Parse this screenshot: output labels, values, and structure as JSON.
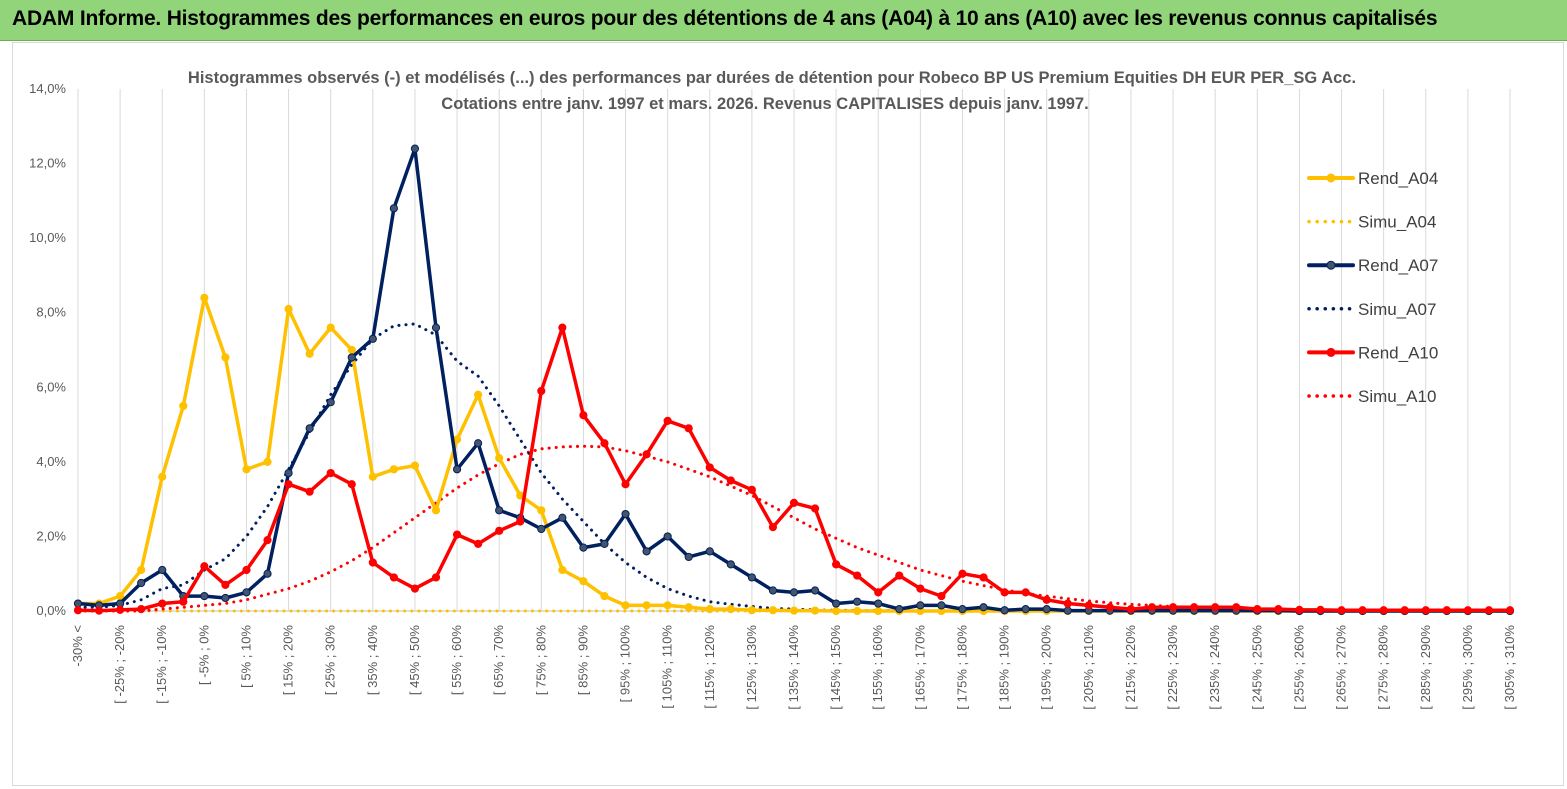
{
  "banner": {
    "title": "ADAM Informe. Histogrammes des performances en euros pour des détentions de 4 ans (A04) à 10 ans (A10) avec les revenus connus capitalisés"
  },
  "chart_data": {
    "type": "line",
    "title_line1": "Histogrammes observés (-) et modélisés (...) des performances par durées de détention pour Robeco BP US Premium Equities DH EUR PER_SG Acc.",
    "title_line2": "Cotations entre janv. 1997 et mars. 2026. Revenus CAPITALISES depuis janv. 1997.",
    "ylim": [
      0,
      14
    ],
    "yticks": [
      "0,0%",
      "2,0%",
      "4,0%",
      "6,0%",
      "8,0%",
      "10,0%",
      "12,0%",
      "14,0%"
    ],
    "xlabels": [
      "-30% <",
      "[ -25% ; -20%",
      "[ -15% ; -10%",
      "[ -5% ; 0%",
      "[ 5% ; 10%",
      "[ 15% ; 20%",
      "[ 25% ; 30%",
      "[ 35% ; 40%",
      "[ 45% ; 50%",
      "[ 55% ; 60%",
      "[ 65% ; 70%",
      "[ 75% ; 80%",
      "[ 85% ; 90%",
      "[ 95% ; 100%",
      "[ 105% ; 110%",
      "[ 115% ; 120%",
      "[ 125% ; 130%",
      "[ 135% ; 140%",
      "[ 145% ; 150%",
      "[ 155% ; 160%",
      "[ 165% ; 170%",
      "[ 175% ; 180%",
      "[ 185% ; 190%",
      "[ 195% ; 200%",
      "[ 205% ; 210%",
      "[ 215% ; 220%",
      "[ 225% ; 230%",
      "[ 235% ; 240%",
      "[ 245% ; 250%",
      "[ 255% ; 260%",
      "[ 265% ; 270%",
      "[ 275% ; 280%",
      "[ 285% ; 290%",
      "[ 295% ; 300%",
      "[ 305% ; 310%"
    ],
    "n_categories": 69,
    "series": [
      {
        "name": "Rend_A04",
        "style": "solid",
        "color": "#ffc000",
        "values": [
          0.2,
          0.2,
          0.4,
          1.1,
          3.6,
          5.5,
          8.4,
          6.8,
          3.8,
          4.0,
          8.1,
          6.9,
          7.6,
          7.0,
          3.6,
          3.8,
          3.9,
          2.7,
          4.6,
          5.8,
          4.1,
          3.1,
          2.7,
          1.1,
          0.8,
          0.4,
          0.15,
          0.15,
          0.15,
          0.1,
          0.05,
          0.05,
          0.02,
          0.02,
          0.01,
          0.01,
          0,
          0,
          0,
          0,
          0,
          0,
          0,
          0,
          0,
          0,
          0,
          0,
          0,
          0,
          0,
          0,
          0,
          0,
          0,
          0,
          0,
          0,
          0,
          0,
          0,
          0,
          0,
          0,
          0,
          0,
          0,
          0,
          0
        ]
      },
      {
        "name": "Simu_A04",
        "style": "dotted",
        "color": "#ffc000",
        "values": [
          0,
          0,
          0,
          0,
          0,
          0,
          0,
          0,
          0,
          0,
          0,
          0,
          0,
          0,
          0,
          0,
          0,
          0,
          0,
          0,
          0,
          0,
          0,
          0,
          0,
          0,
          0,
          0,
          0,
          0,
          0,
          0,
          0,
          0,
          0,
          0,
          0,
          0,
          0,
          0,
          0,
          0,
          0,
          0,
          0,
          0,
          0,
          0,
          0,
          0,
          0,
          0,
          0,
          0,
          0,
          0,
          0,
          0,
          0,
          0,
          0,
          0,
          0,
          0,
          0,
          0,
          0,
          0,
          0
        ]
      },
      {
        "name": "Rend_A07",
        "style": "solid",
        "color": "#002060",
        "values": [
          0.2,
          0.15,
          0.2,
          0.75,
          1.1,
          0.4,
          0.4,
          0.35,
          0.5,
          1.0,
          3.7,
          4.9,
          5.6,
          6.8,
          7.3,
          10.8,
          12.4,
          7.6,
          3.8,
          4.5,
          2.7,
          2.5,
          2.2,
          2.5,
          1.7,
          1.8,
          2.6,
          1.6,
          2.0,
          1.45,
          1.6,
          1.25,
          0.9,
          0.55,
          0.5,
          0.55,
          0.2,
          0.25,
          0.2,
          0.05,
          0.15,
          0.15,
          0.05,
          0.1,
          0.02,
          0.05,
          0.05,
          0.01,
          0.01,
          0.01,
          0.01,
          0.01,
          0.01,
          0.01,
          0.01,
          0.01,
          0.01,
          0.01,
          0,
          0,
          0,
          0,
          0,
          0,
          0,
          0,
          0,
          0,
          0
        ]
      },
      {
        "name": "Simu_A07",
        "style": "dotted",
        "color": "#002060",
        "values": [
          0.1,
          0.1,
          0.15,
          0.3,
          0.6,
          0.7,
          1.1,
          1.4,
          2.0,
          2.8,
          3.8,
          4.8,
          5.8,
          6.6,
          7.3,
          7.65,
          7.7,
          7.4,
          6.7,
          6.3,
          5.5,
          4.6,
          3.7,
          3.0,
          2.4,
          1.8,
          1.3,
          0.9,
          0.6,
          0.4,
          0.25,
          0.18,
          0.12,
          0.07,
          0.05,
          0.03,
          0.02,
          0.01,
          0.01,
          0.01,
          0,
          0,
          0,
          0,
          0,
          0,
          0,
          0,
          0,
          0,
          0,
          0,
          0,
          0,
          0,
          0,
          0,
          0,
          0,
          0,
          0,
          0,
          0,
          0,
          0,
          0,
          0,
          0,
          0
        ]
      },
      {
        "name": "Rend_A10",
        "style": "solid",
        "color": "#ff0000",
        "values": [
          0.02,
          0.01,
          0.03,
          0.05,
          0.2,
          0.25,
          1.2,
          0.7,
          1.1,
          1.9,
          3.4,
          3.2,
          3.7,
          3.4,
          1.3,
          0.9,
          0.6,
          0.9,
          2.05,
          1.8,
          2.15,
          2.4,
          5.9,
          7.6,
          5.25,
          4.5,
          3.4,
          4.2,
          5.1,
          4.9,
          3.85,
          3.5,
          3.25,
          2.25,
          2.9,
          2.75,
          1.25,
          0.95,
          0.5,
          0.95,
          0.6,
          0.4,
          1.0,
          0.9,
          0.5,
          0.5,
          0.3,
          0.2,
          0.15,
          0.1,
          0.05,
          0.1,
          0.1,
          0.1,
          0.1,
          0.1,
          0.05,
          0.05,
          0.03,
          0.03,
          0.02,
          0.02,
          0.02,
          0.02,
          0.02,
          0.02,
          0.02,
          0.02,
          0.02
        ]
      },
      {
        "name": "Simu_A10",
        "style": "dotted",
        "color": "#ff0000",
        "values": [
          0,
          0,
          0,
          0,
          0.05,
          0.1,
          0.15,
          0.2,
          0.3,
          0.45,
          0.6,
          0.8,
          1.05,
          1.35,
          1.7,
          2.1,
          2.5,
          2.9,
          3.3,
          3.65,
          3.95,
          4.2,
          4.35,
          4.4,
          4.42,
          4.4,
          4.3,
          4.15,
          4.0,
          3.8,
          3.6,
          3.35,
          3.1,
          2.8,
          2.5,
          2.2,
          1.95,
          1.7,
          1.5,
          1.3,
          1.1,
          0.95,
          0.8,
          0.68,
          0.57,
          0.47,
          0.4,
          0.33,
          0.27,
          0.22,
          0.18,
          0.15,
          0.12,
          0.1,
          0.08,
          0.06,
          0.05,
          0.04,
          0.03,
          0.02,
          0.02,
          0.02,
          0.01,
          0.01,
          0.01,
          0.01,
          0.01,
          0.01,
          0.01
        ]
      }
    ],
    "legend_position": "right"
  }
}
